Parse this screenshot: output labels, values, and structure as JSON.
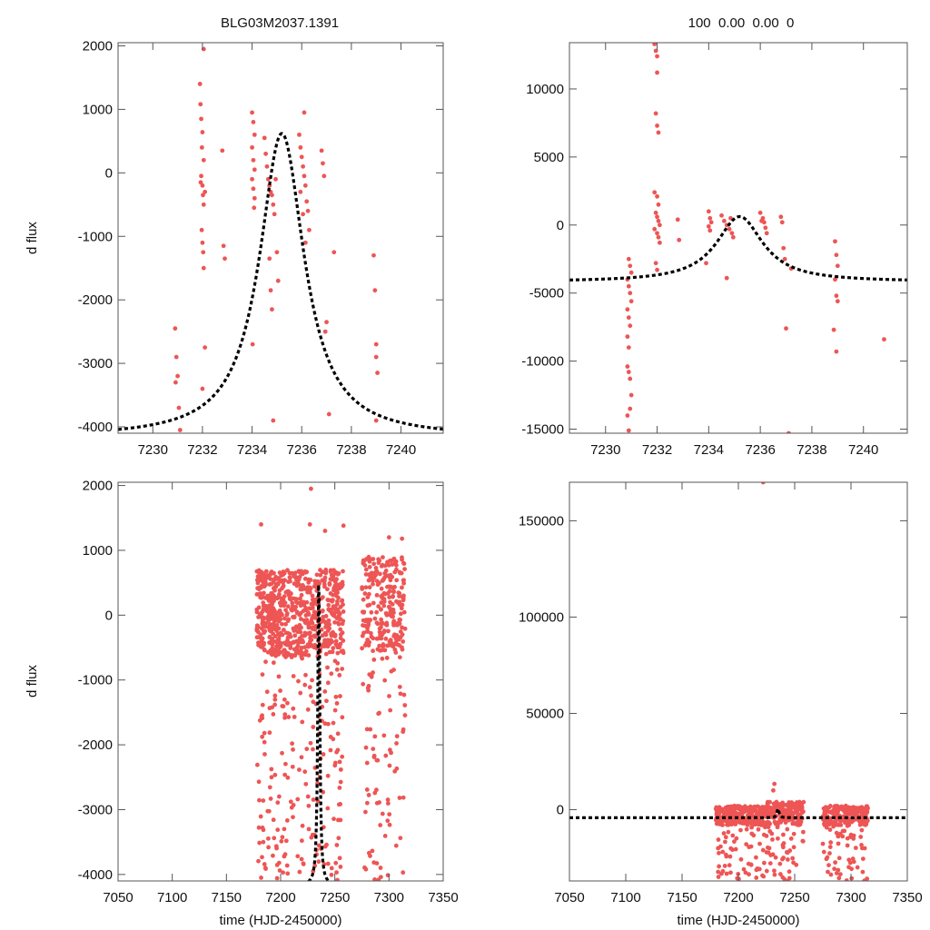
{
  "figure_title": "BLG03M2037.1391",
  "fit_params": "100  0.00  0.00  0",
  "colors": {
    "points": "#ee5555",
    "model": "#000000",
    "frame": "#555555"
  },
  "chart_data": [
    {
      "id": "top-left",
      "type": "scatter",
      "title": "BLG03M2037.1391",
      "xlabel": "",
      "ylabel": "d flux",
      "xlim": [
        7228.6,
        7241.7
      ],
      "ylim": [
        -4100,
        2050
      ],
      "xticks": [
        7230,
        7232,
        7234,
        7236,
        7238,
        7240
      ],
      "yticks": [
        2000,
        1000,
        0,
        -1000,
        -2000,
        -3000,
        -4000
      ],
      "series": [
        {
          "name": "data",
          "points": [
            [
              7230.9,
              -2450
            ],
            [
              7230.95,
              -2900
            ],
            [
              7231.0,
              -3200
            ],
            [
              7231.05,
              -3700
            ],
            [
              7231.1,
              -4050
            ],
            [
              7230.92,
              -3300
            ],
            [
              7231.9,
              1400
            ],
            [
              7231.92,
              1080
            ],
            [
              7231.95,
              850
            ],
            [
              7232.0,
              640
            ],
            [
              7231.98,
              400
            ],
            [
              7232.05,
              200
            ],
            [
              7231.95,
              -50
            ],
            [
              7232.0,
              -200
            ],
            [
              7232.02,
              -350
            ],
            [
              7232.05,
              -500
            ],
            [
              7231.93,
              -150
            ],
            [
              7232.1,
              -300
            ],
            [
              7231.97,
              -900
            ],
            [
              7232.0,
              -1100
            ],
            [
              7232.03,
              -1250
            ],
            [
              7232.05,
              -1500
            ],
            [
              7232.05,
              1950
            ],
            [
              7232.1,
              -2750
            ],
            [
              7232.0,
              -3400
            ],
            [
              7232.8,
              350
            ],
            [
              7232.85,
              -1150
            ],
            [
              7232.9,
              -1350
            ],
            [
              7234.0,
              950
            ],
            [
              7234.05,
              800
            ],
            [
              7234.1,
              600
            ],
            [
              7234.0,
              400
            ],
            [
              7234.05,
              200
            ],
            [
              7234.1,
              50
            ],
            [
              7234.0,
              -100
            ],
            [
              7234.05,
              -250
            ],
            [
              7234.1,
              -400
            ],
            [
              7234.08,
              -550
            ],
            [
              7234.02,
              -2700
            ],
            [
              7234.5,
              550
            ],
            [
              7234.55,
              300
            ],
            [
              7234.6,
              100
            ],
            [
              7234.65,
              -100
            ],
            [
              7234.7,
              -200
            ],
            [
              7234.75,
              -300
            ],
            [
              7234.8,
              -350
            ],
            [
              7234.85,
              -500
            ],
            [
              7234.9,
              -650
            ],
            [
              7234.95,
              -100
            ],
            [
              7234.7,
              -1350
            ],
            [
              7234.75,
              -1850
            ],
            [
              7234.8,
              -2150
            ],
            [
              7234.85,
              -3900
            ],
            [
              7235.0,
              -1250
            ],
            [
              7235.05,
              -1700
            ],
            [
              7235.9,
              600
            ],
            [
              7235.95,
              400
            ],
            [
              7236.0,
              250
            ],
            [
              7236.05,
              100
            ],
            [
              7236.1,
              -50
            ],
            [
              7236.15,
              -200
            ],
            [
              7236.2,
              -450
            ],
            [
              7236.25,
              -600
            ],
            [
              7236.3,
              -900
            ],
            [
              7235.95,
              -300
            ],
            [
              7236.05,
              -650
            ],
            [
              7236.1,
              950
            ],
            [
              7236.15,
              -1100
            ],
            [
              7236.8,
              350
            ],
            [
              7236.85,
              150
            ],
            [
              7236.9,
              -50
            ],
            [
              7236.95,
              -2500
            ],
            [
              7237.1,
              -3800
            ],
            [
              7237.3,
              -1250
            ],
            [
              7237.0,
              -2350
            ],
            [
              7238.9,
              -1300
            ],
            [
              7238.95,
              -1850
            ],
            [
              7239.0,
              -2700
            ],
            [
              7239.0,
              -2900
            ],
            [
              7239.05,
              -3150
            ],
            [
              7239.0,
              -3900
            ]
          ]
        },
        {
          "name": "model",
          "x0": 7235.2,
          "tE": 1.1,
          "peak": 620,
          "base": -4170
        }
      ]
    },
    {
      "id": "top-right",
      "type": "scatter",
      "title": "100  0.00  0.00  0",
      "xlabel": "",
      "ylabel": "",
      "xlim": [
        7228.6,
        7241.7
      ],
      "ylim": [
        -15300,
        13400
      ],
      "xticks": [
        7230,
        7232,
        7234,
        7236,
        7238,
        7240
      ],
      "yticks": [
        10000,
        5000,
        0,
        -5000,
        -10000,
        -15000
      ],
      "series": [
        {
          "name": "data",
          "points": [
            [
              7230.9,
              -2500
            ],
            [
              7230.95,
              -3000
            ],
            [
              7231.0,
              -3500
            ],
            [
              7230.85,
              -4000
            ],
            [
              7230.9,
              -4500
            ],
            [
              7230.95,
              -5000
            ],
            [
              7231.0,
              -5600
            ],
            [
              7230.85,
              -6200
            ],
            [
              7230.9,
              -6800
            ],
            [
              7230.95,
              -7400
            ],
            [
              7230.85,
              -8200
            ],
            [
              7230.9,
              -9000
            ],
            [
              7230.85,
              -10400
            ],
            [
              7230.9,
              -10800
            ],
            [
              7230.95,
              -11300
            ],
            [
              7231.0,
              -12500
            ],
            [
              7230.95,
              -13500
            ],
            [
              7230.85,
              -14000
            ],
            [
              7230.9,
              -15100
            ],
            [
              7231.9,
              13300
            ],
            [
              7231.95,
              12800
            ],
            [
              7232.0,
              12400
            ],
            [
              7232.0,
              11200
            ],
            [
              7231.95,
              8200
            ],
            [
              7232.0,
              7300
            ],
            [
              7232.05,
              6800
            ],
            [
              7231.9,
              2400
            ],
            [
              7232.0,
              2100
            ],
            [
              7232.05,
              1500
            ],
            [
              7231.95,
              900
            ],
            [
              7232.0,
              600
            ],
            [
              7232.05,
              300
            ],
            [
              7232.1,
              0
            ],
            [
              7231.9,
              -300
            ],
            [
              7232.0,
              -600
            ],
            [
              7232.05,
              -900
            ],
            [
              7232.1,
              -1300
            ],
            [
              7231.95,
              -2800
            ],
            [
              7232.0,
              -3300
            ],
            [
              7232.8,
              400
            ],
            [
              7232.85,
              -1100
            ],
            [
              7234.0,
              1000
            ],
            [
              7234.05,
              500
            ],
            [
              7234.1,
              200
            ],
            [
              7234.0,
              -100
            ],
            [
              7234.05,
              -400
            ],
            [
              7233.9,
              -2800
            ],
            [
              7234.5,
              700
            ],
            [
              7234.6,
              300
            ],
            [
              7234.7,
              0
            ],
            [
              7234.8,
              -300
            ],
            [
              7234.9,
              -600
            ],
            [
              7234.95,
              -900
            ],
            [
              7234.85,
              500
            ],
            [
              7234.7,
              -3900
            ],
            [
              7236.0,
              900
            ],
            [
              7236.1,
              500
            ],
            [
              7236.15,
              200
            ],
            [
              7236.2,
              -200
            ],
            [
              7236.25,
              -600
            ],
            [
              7236.05,
              300
            ],
            [
              7236.8,
              600
            ],
            [
              7236.85,
              200
            ],
            [
              7236.9,
              -1700
            ],
            [
              7236.95,
              -2500
            ],
            [
              7237.0,
              -7600
            ],
            [
              7237.1,
              -15300
            ],
            [
              7237.2,
              -3200
            ],
            [
              7238.9,
              -1200
            ],
            [
              7238.95,
              -2200
            ],
            [
              7239.0,
              -3000
            ],
            [
              7238.9,
              -4000
            ],
            [
              7238.95,
              -5200
            ],
            [
              7239.0,
              -5600
            ],
            [
              7238.85,
              -7700
            ],
            [
              7238.95,
              -9300
            ],
            [
              7240.8,
              -8400
            ]
          ]
        },
        {
          "name": "model",
          "x0": 7235.2,
          "tE": 1.1,
          "peak": 620,
          "base": -4170
        }
      ]
    },
    {
      "id": "bottom-left",
      "type": "scatter",
      "title": "",
      "xlabel": "time (HJD-2450000)",
      "ylabel": "d flux",
      "xlim": [
        7050,
        7350
      ],
      "ylim": [
        -4100,
        2050
      ],
      "xticks": [
        7050,
        7100,
        7150,
        7200,
        7250,
        7300,
        7350
      ],
      "yticks": [
        2000,
        1000,
        0,
        -1000,
        -2000,
        -3000,
        -4000
      ],
      "series": [
        {
          "name": "data",
          "points": [],
          "generated_clusters": [
            {
              "x_from": 7178,
              "x_to": 7195,
              "n": 230,
              "core": [
                -600,
                700
              ]
            },
            {
              "x_from": 7195,
              "x_to": 7225,
              "n": 300,
              "core": [
                -650,
                700
              ]
            },
            {
              "x_from": 7225,
              "x_to": 7232,
              "n": 70,
              "core": [
                -500,
                600
              ]
            },
            {
              "x_from": 7232,
              "x_to": 7258,
              "n": 260,
              "core": [
                -600,
                700
              ]
            },
            {
              "x_from": 7275,
              "x_to": 7315,
              "n": 330,
              "core": [
                -550,
                900
              ]
            }
          ],
          "outliers": [
            [
              7182,
              1400
            ],
            [
              7228,
              1950
            ],
            [
              7227,
              1400
            ],
            [
              7241,
              1300
            ],
            [
              7258,
              1380
            ],
            [
              7300,
              1200
            ],
            [
              7312,
              1180
            ],
            [
              7182,
              -4050
            ],
            [
              7186,
              -3900
            ],
            [
              7184,
              -3500
            ],
            [
              7230,
              -3950
            ],
            [
              7226,
              -3300
            ]
          ]
        },
        {
          "name": "model",
          "x0": 7235.2,
          "tE": 1.1,
          "peak": 620,
          "base": -4170
        }
      ]
    },
    {
      "id": "bottom-right",
      "type": "scatter",
      "title": "",
      "xlabel": "time (HJD-2450000)",
      "ylabel": "",
      "xlim": [
        7050,
        7350
      ],
      "ylim": [
        -37000,
        170000
      ],
      "xticks": [
        7050,
        7100,
        7150,
        7200,
        7250,
        7300,
        7350
      ],
      "yticks": [
        150000,
        100000,
        50000,
        0
      ],
      "series": [
        {
          "name": "data",
          "points": [],
          "generated_clusters": [
            {
              "x_from": 7180,
              "x_to": 7225,
              "n": 300,
              "core": [
                -8000,
                2000
              ]
            },
            {
              "x_from": 7225,
              "x_to": 7258,
              "n": 200,
              "core": [
                -8000,
                4000
              ]
            },
            {
              "x_from": 7275,
              "x_to": 7315,
              "n": 250,
              "core": [
                -8000,
                2000
              ]
            }
          ],
          "outliers": [
            [
              7222,
              170000
            ],
            [
              7232,
              13400
            ],
            [
              7231,
              10000
            ],
            [
              7182,
              -20000
            ],
            [
              7222,
              -21000
            ],
            [
              7240,
              -25000
            ],
            [
              7244,
              -37000
            ],
            [
              7282,
              -17000
            ],
            [
              7310,
              -20000
            ],
            [
              7235,
              -15000
            ]
          ]
        },
        {
          "name": "model",
          "x0": 7235.2,
          "tE": 1.1,
          "peak": 620,
          "base": -4170
        }
      ]
    }
  ]
}
